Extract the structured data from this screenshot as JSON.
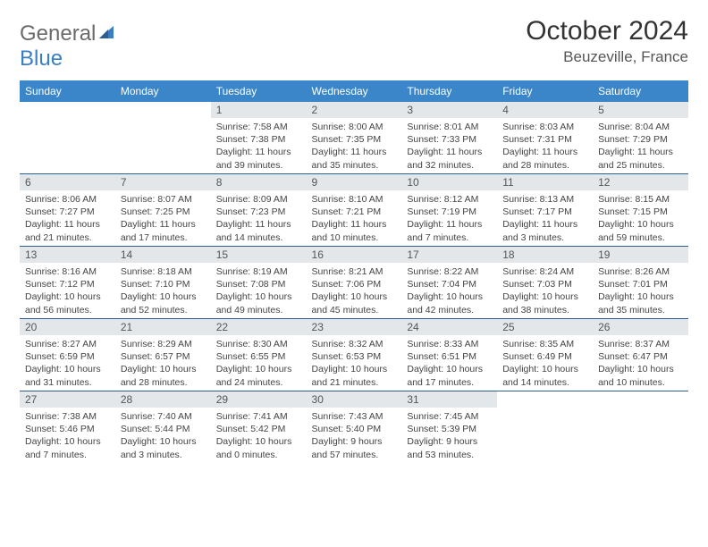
{
  "brand": {
    "general": "General",
    "blue": "Blue"
  },
  "title": "October 2024",
  "location": "Beuzeville, France",
  "colors": {
    "header_bg": "#3a86c8",
    "header_text": "#ffffff",
    "daynum_bg": "#e3e7ea",
    "divider": "#2f5e8a",
    "logo_gray": "#6a6a6a",
    "logo_blue": "#3a7fc4"
  },
  "day_names": [
    "Sunday",
    "Monday",
    "Tuesday",
    "Wednesday",
    "Thursday",
    "Friday",
    "Saturday"
  ],
  "weeks": [
    [
      {
        "n": "",
        "sr": "",
        "ss": "",
        "dl": ""
      },
      {
        "n": "",
        "sr": "",
        "ss": "",
        "dl": ""
      },
      {
        "n": "1",
        "sr": "Sunrise: 7:58 AM",
        "ss": "Sunset: 7:38 PM",
        "dl": "Daylight: 11 hours and 39 minutes."
      },
      {
        "n": "2",
        "sr": "Sunrise: 8:00 AM",
        "ss": "Sunset: 7:35 PM",
        "dl": "Daylight: 11 hours and 35 minutes."
      },
      {
        "n": "3",
        "sr": "Sunrise: 8:01 AM",
        "ss": "Sunset: 7:33 PM",
        "dl": "Daylight: 11 hours and 32 minutes."
      },
      {
        "n": "4",
        "sr": "Sunrise: 8:03 AM",
        "ss": "Sunset: 7:31 PM",
        "dl": "Daylight: 11 hours and 28 minutes."
      },
      {
        "n": "5",
        "sr": "Sunrise: 8:04 AM",
        "ss": "Sunset: 7:29 PM",
        "dl": "Daylight: 11 hours and 25 minutes."
      }
    ],
    [
      {
        "n": "6",
        "sr": "Sunrise: 8:06 AM",
        "ss": "Sunset: 7:27 PM",
        "dl": "Daylight: 11 hours and 21 minutes."
      },
      {
        "n": "7",
        "sr": "Sunrise: 8:07 AM",
        "ss": "Sunset: 7:25 PM",
        "dl": "Daylight: 11 hours and 17 minutes."
      },
      {
        "n": "8",
        "sr": "Sunrise: 8:09 AM",
        "ss": "Sunset: 7:23 PM",
        "dl": "Daylight: 11 hours and 14 minutes."
      },
      {
        "n": "9",
        "sr": "Sunrise: 8:10 AM",
        "ss": "Sunset: 7:21 PM",
        "dl": "Daylight: 11 hours and 10 minutes."
      },
      {
        "n": "10",
        "sr": "Sunrise: 8:12 AM",
        "ss": "Sunset: 7:19 PM",
        "dl": "Daylight: 11 hours and 7 minutes."
      },
      {
        "n": "11",
        "sr": "Sunrise: 8:13 AM",
        "ss": "Sunset: 7:17 PM",
        "dl": "Daylight: 11 hours and 3 minutes."
      },
      {
        "n": "12",
        "sr": "Sunrise: 8:15 AM",
        "ss": "Sunset: 7:15 PM",
        "dl": "Daylight: 10 hours and 59 minutes."
      }
    ],
    [
      {
        "n": "13",
        "sr": "Sunrise: 8:16 AM",
        "ss": "Sunset: 7:12 PM",
        "dl": "Daylight: 10 hours and 56 minutes."
      },
      {
        "n": "14",
        "sr": "Sunrise: 8:18 AM",
        "ss": "Sunset: 7:10 PM",
        "dl": "Daylight: 10 hours and 52 minutes."
      },
      {
        "n": "15",
        "sr": "Sunrise: 8:19 AM",
        "ss": "Sunset: 7:08 PM",
        "dl": "Daylight: 10 hours and 49 minutes."
      },
      {
        "n": "16",
        "sr": "Sunrise: 8:21 AM",
        "ss": "Sunset: 7:06 PM",
        "dl": "Daylight: 10 hours and 45 minutes."
      },
      {
        "n": "17",
        "sr": "Sunrise: 8:22 AM",
        "ss": "Sunset: 7:04 PM",
        "dl": "Daylight: 10 hours and 42 minutes."
      },
      {
        "n": "18",
        "sr": "Sunrise: 8:24 AM",
        "ss": "Sunset: 7:03 PM",
        "dl": "Daylight: 10 hours and 38 minutes."
      },
      {
        "n": "19",
        "sr": "Sunrise: 8:26 AM",
        "ss": "Sunset: 7:01 PM",
        "dl": "Daylight: 10 hours and 35 minutes."
      }
    ],
    [
      {
        "n": "20",
        "sr": "Sunrise: 8:27 AM",
        "ss": "Sunset: 6:59 PM",
        "dl": "Daylight: 10 hours and 31 minutes."
      },
      {
        "n": "21",
        "sr": "Sunrise: 8:29 AM",
        "ss": "Sunset: 6:57 PM",
        "dl": "Daylight: 10 hours and 28 minutes."
      },
      {
        "n": "22",
        "sr": "Sunrise: 8:30 AM",
        "ss": "Sunset: 6:55 PM",
        "dl": "Daylight: 10 hours and 24 minutes."
      },
      {
        "n": "23",
        "sr": "Sunrise: 8:32 AM",
        "ss": "Sunset: 6:53 PM",
        "dl": "Daylight: 10 hours and 21 minutes."
      },
      {
        "n": "24",
        "sr": "Sunrise: 8:33 AM",
        "ss": "Sunset: 6:51 PM",
        "dl": "Daylight: 10 hours and 17 minutes."
      },
      {
        "n": "25",
        "sr": "Sunrise: 8:35 AM",
        "ss": "Sunset: 6:49 PM",
        "dl": "Daylight: 10 hours and 14 minutes."
      },
      {
        "n": "26",
        "sr": "Sunrise: 8:37 AM",
        "ss": "Sunset: 6:47 PM",
        "dl": "Daylight: 10 hours and 10 minutes."
      }
    ],
    [
      {
        "n": "27",
        "sr": "Sunrise: 7:38 AM",
        "ss": "Sunset: 5:46 PM",
        "dl": "Daylight: 10 hours and 7 minutes."
      },
      {
        "n": "28",
        "sr": "Sunrise: 7:40 AM",
        "ss": "Sunset: 5:44 PM",
        "dl": "Daylight: 10 hours and 3 minutes."
      },
      {
        "n": "29",
        "sr": "Sunrise: 7:41 AM",
        "ss": "Sunset: 5:42 PM",
        "dl": "Daylight: 10 hours and 0 minutes."
      },
      {
        "n": "30",
        "sr": "Sunrise: 7:43 AM",
        "ss": "Sunset: 5:40 PM",
        "dl": "Daylight: 9 hours and 57 minutes."
      },
      {
        "n": "31",
        "sr": "Sunrise: 7:45 AM",
        "ss": "Sunset: 5:39 PM",
        "dl": "Daylight: 9 hours and 53 minutes."
      },
      {
        "n": "",
        "sr": "",
        "ss": "",
        "dl": ""
      },
      {
        "n": "",
        "sr": "",
        "ss": "",
        "dl": ""
      }
    ]
  ]
}
